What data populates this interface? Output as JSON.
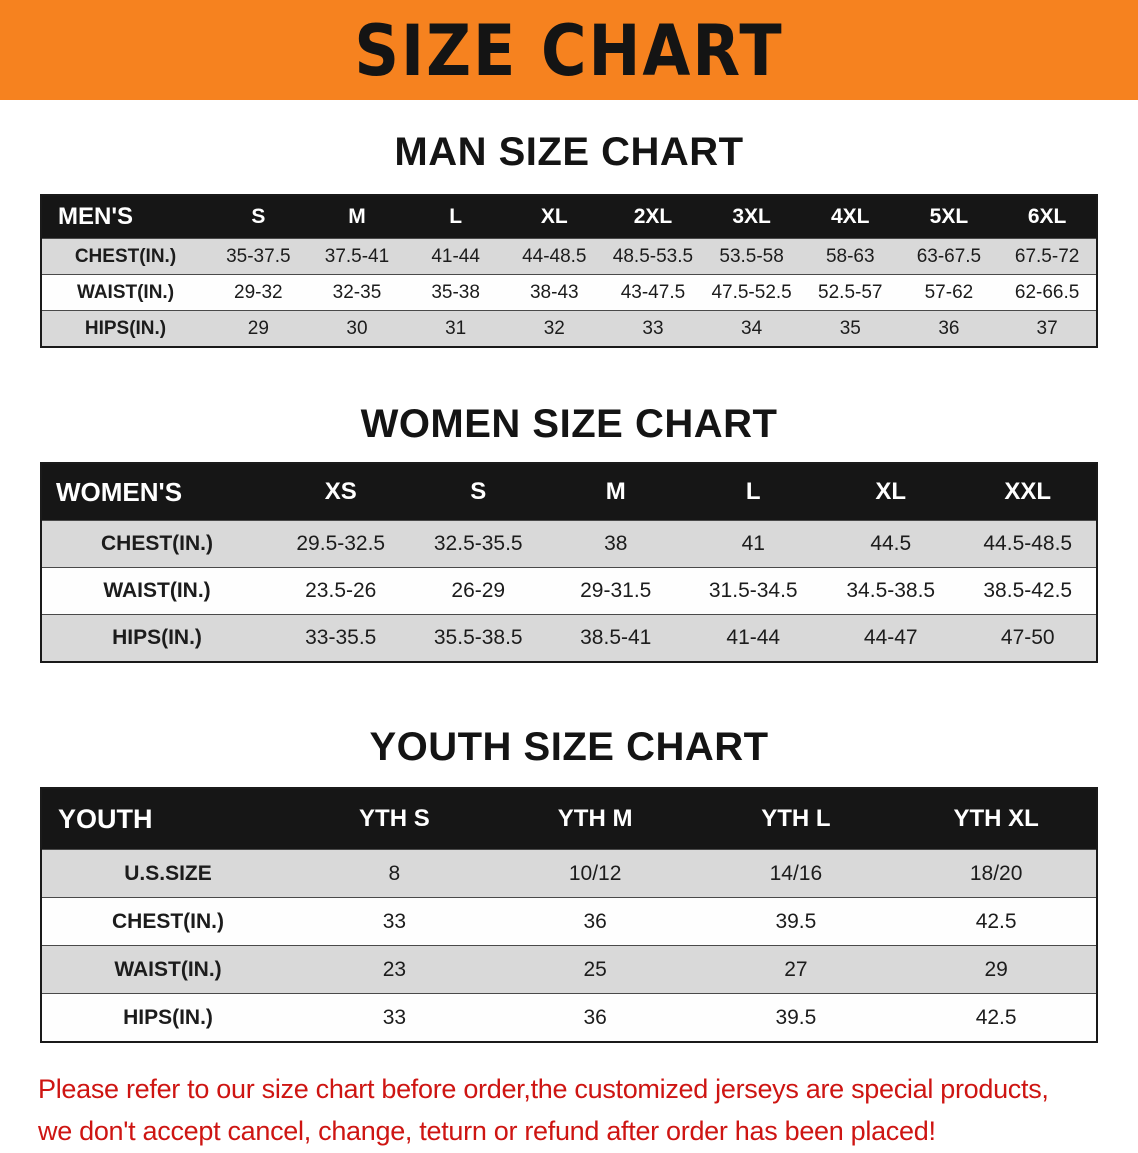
{
  "colors": {
    "banner_bg": "#F6821F",
    "header_bar_bg": "#161616",
    "row_alt_bg": "#D9D9D9",
    "disclaimer_text": "#CE1512"
  },
  "banner": {
    "title": "SIZE CHART"
  },
  "sections": [
    {
      "id": "men",
      "heading": "MAN SIZE CHART",
      "table": {
        "header": [
          "MEN'S",
          "S",
          "M",
          "L",
          "XL",
          "2XL",
          "3XL",
          "4XL",
          "5XL",
          "6XL"
        ],
        "rows": [
          [
            "CHEST(IN.)",
            "35-37.5",
            "37.5-41",
            "41-44",
            "44-48.5",
            "48.5-53.5",
            "53.5-58",
            "58-63",
            "63-67.5",
            "67.5-72"
          ],
          [
            "WAIST(IN.)",
            "29-32",
            "32-35",
            "35-38",
            "38-43",
            "43-47.5",
            "47.5-52.5",
            "52.5-57",
            "57-62",
            "62-66.5"
          ],
          [
            "HIPS(IN.)",
            "29",
            "30",
            "31",
            "32",
            "33",
            "34",
            "35",
            "36",
            "37"
          ]
        ]
      }
    },
    {
      "id": "women",
      "heading": "WOMEN SIZE CHART",
      "table": {
        "header": [
          "WOMEN'S",
          "XS",
          "S",
          "M",
          "L",
          "XL",
          "XXL"
        ],
        "rows": [
          [
            "CHEST(IN.)",
            "29.5-32.5",
            "32.5-35.5",
            "38",
            "41",
            "44.5",
            "44.5-48.5"
          ],
          [
            "WAIST(IN.)",
            "23.5-26",
            "26-29",
            "29-31.5",
            "31.5-34.5",
            "34.5-38.5",
            "38.5-42.5"
          ],
          [
            "HIPS(IN.)",
            "33-35.5",
            "35.5-38.5",
            "38.5-41",
            "41-44",
            "44-47",
            "47-50"
          ]
        ]
      }
    },
    {
      "id": "youth",
      "heading": "YOUTH SIZE CHART",
      "table": {
        "header": [
          "YOUTH",
          "YTH S",
          "YTH M",
          "YTH L",
          "YTH XL"
        ],
        "rows": [
          [
            "U.S.SIZE",
            "8",
            "10/12",
            "14/16",
            "18/20"
          ],
          [
            "CHEST(IN.)",
            "33",
            "36",
            "39.5",
            "42.5"
          ],
          [
            "WAIST(IN.)",
            "23",
            "25",
            "27",
            "29"
          ],
          [
            "HIPS(IN.)",
            "33",
            "36",
            "39.5",
            "42.5"
          ]
        ]
      }
    }
  ],
  "disclaimer": {
    "lines": [
      "Please refer to our size chart before order,the customized jerseys are special products,",
      "we don't accept cancel, change, teturn or refund after order has been placed!"
    ]
  }
}
